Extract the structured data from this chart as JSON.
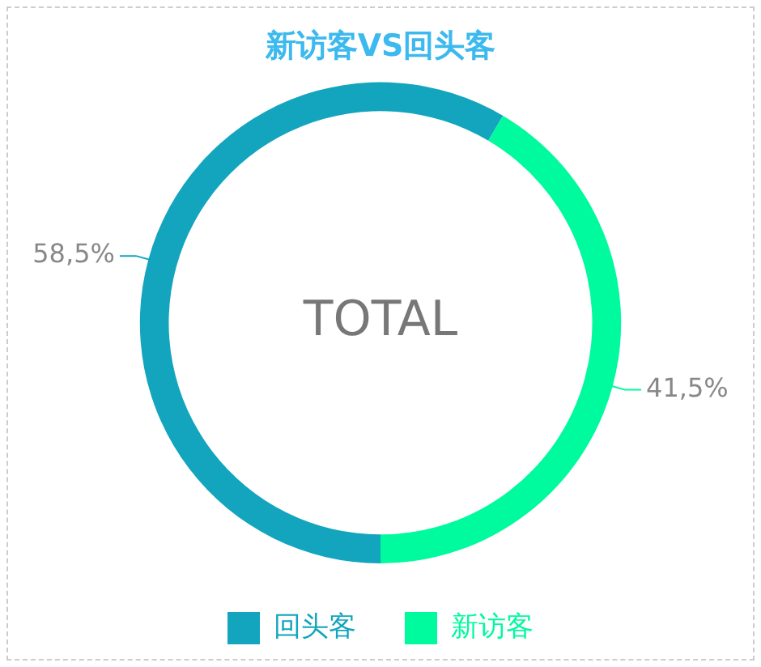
{
  "chart_data": {
    "type": "donut",
    "title": "新访客VS回头客",
    "categories": [
      "回头客",
      "新访客"
    ],
    "values": [
      58.5,
      41.5
    ],
    "colors": [
      "#12a5bd",
      "#00fa9e"
    ],
    "value_labels": [
      "58,5%",
      "41,5%"
    ],
    "annotations": [
      "TOTAL"
    ],
    "legend": "bottom"
  }
}
